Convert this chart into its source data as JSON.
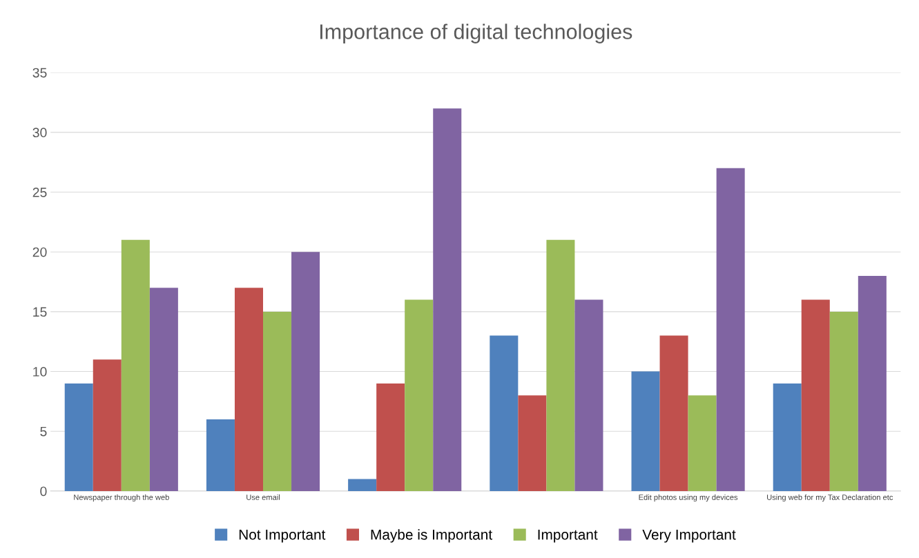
{
  "chart_data": {
    "type": "bar",
    "title": "Importance of digital technologies",
    "categories": [
      "Newspaper through the web",
      "Use email",
      null,
      null,
      "Edit photos using my devices",
      "Using web for my Tax Declaration etc"
    ],
    "series": [
      {
        "name": "Not Important",
        "color": "#4f81bd",
        "values": [
          9,
          6,
          1,
          13,
          10,
          9
        ]
      },
      {
        "name": "Maybe is Important",
        "color": "#c0504d",
        "values": [
          11,
          17,
          9,
          8,
          13,
          16
        ]
      },
      {
        "name": "Important",
        "color": "#9bbb59",
        "values": [
          21,
          15,
          16,
          21,
          8,
          15
        ]
      },
      {
        "name": "Very Important",
        "color": "#8064a2",
        "values": [
          17,
          20,
          32,
          16,
          27,
          18
        ]
      }
    ],
    "ylim": [
      0,
      35
    ],
    "yticks": [
      0,
      5,
      10,
      15,
      20,
      25,
      30,
      35
    ],
    "grid": "y",
    "legend": "bottom"
  }
}
